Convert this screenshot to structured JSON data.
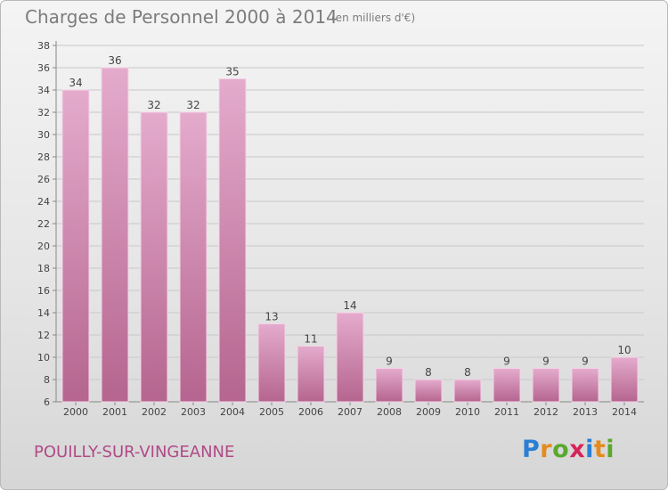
{
  "header": {
    "title": "Charges de Personnel 2000 à 2014",
    "subtitle": "(en milliers d'€)"
  },
  "footer": {
    "commune": "POUILLY-SUR-VINGEANNE",
    "logo": {
      "letters": [
        "P",
        "r",
        "o",
        "x",
        "i",
        "t",
        "i"
      ],
      "colors": [
        "#2a7fd4",
        "#e58b1e",
        "#5aa82e",
        "#d6245a",
        "#2a7fd4",
        "#e58b1e",
        "#5aa82e"
      ]
    }
  },
  "chart_data": {
    "type": "bar",
    "categories": [
      "2000",
      "2001",
      "2002",
      "2003",
      "2004",
      "2005",
      "2006",
      "2007",
      "2008",
      "2009",
      "2010",
      "2011",
      "2012",
      "2013",
      "2014"
    ],
    "values": [
      34,
      36,
      32,
      32,
      35,
      13,
      11,
      14,
      9,
      8,
      8,
      9,
      9,
      9,
      10
    ],
    "ylim": [
      6,
      38
    ],
    "yticks": [
      6,
      8,
      10,
      12,
      14,
      16,
      18,
      20,
      22,
      24,
      26,
      28,
      30,
      32,
      34,
      36,
      38
    ],
    "grid": true,
    "bar_color": "#d98fba"
  }
}
